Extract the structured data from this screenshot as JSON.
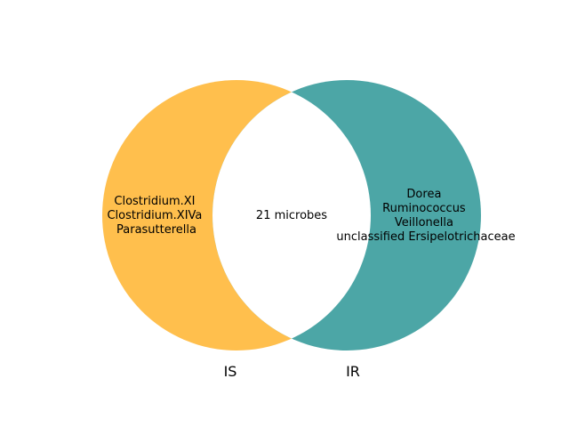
{
  "sets": [
    {
      "label": "IS",
      "color": "#ffbf4d",
      "members": [
        "Clostridium.XI",
        "Clostridium.XIVa",
        "Parasutterella"
      ]
    },
    {
      "label": "IR",
      "color": "#4ca6a6",
      "members": [
        "Dorea",
        "Ruminococcus",
        "Veillonella",
        "unclassified Ersipelotrichaceae"
      ]
    }
  ],
  "intersection": {
    "label": "21 microbes",
    "color": "#ffffff"
  }
}
